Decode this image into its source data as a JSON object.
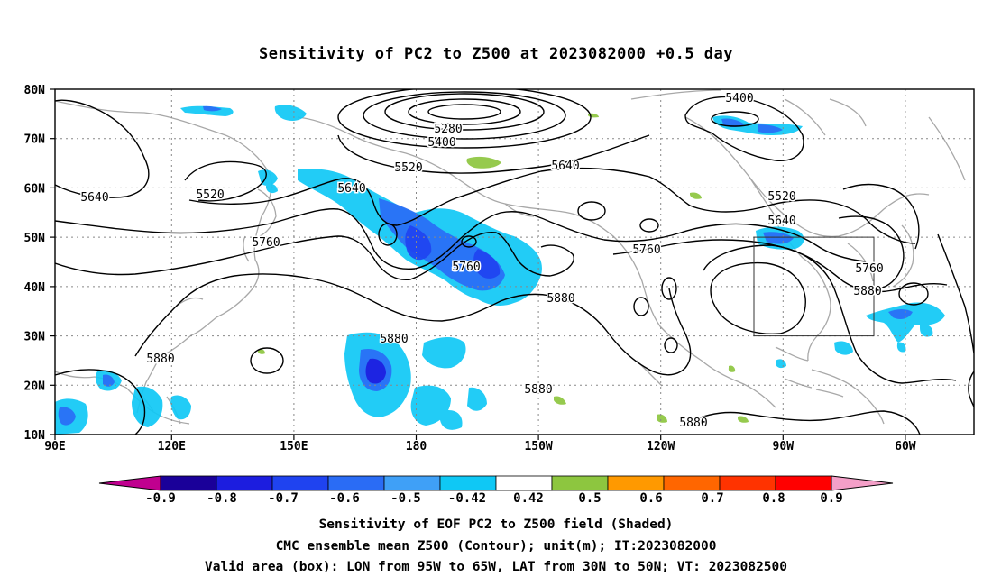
{
  "title": "Sensitivity of PC2 to Z500 at 2023082000 +0.5 day",
  "lat_labels": [
    "80N",
    "70N",
    "60N",
    "50N",
    "40N",
    "30N",
    "20N",
    "10N"
  ],
  "lon_labels": [
    "90E",
    "120E",
    "150E",
    "180",
    "150W",
    "120W",
    "90W",
    "60W"
  ],
  "contour_labels": [
    "5400",
    "5280",
    "5400",
    "5520",
    "5640",
    "5640",
    "5520",
    "5640",
    "5520",
    "5760",
    "5760",
    "5760",
    "5640",
    "5760",
    "5880",
    "5880",
    "5880",
    "5880",
    "5880",
    "5880",
    "5880"
  ],
  "colorbar": {
    "labels": [
      "-0.9",
      "-0.8",
      "-0.7",
      "-0.6",
      "-0.5",
      "-0.42",
      "0.42",
      "0.5",
      "0.6",
      "0.7",
      "0.8",
      "0.9"
    ],
    "colors": [
      "#c0008f",
      "#1a0099",
      "#1c1ddf",
      "#1f43f0",
      "#2a6cf5",
      "#3fa0f7",
      "#0fc8f5",
      "#ffffff",
      "#8dc63f",
      "#ff9900",
      "#ff6600",
      "#ff3300",
      "#ff0000",
      "#f49fc8"
    ]
  },
  "captions": {
    "line1": "Sensitivity of EOF PC2 to Z500 field (Shaded)",
    "line2": "CMC ensemble mean Z500 (Contour); unit(m); IT:2023082000",
    "line3": "Valid area (box): LON from 95W to 65W, LAT from 30N to 50N; VT: 2023082500"
  }
}
